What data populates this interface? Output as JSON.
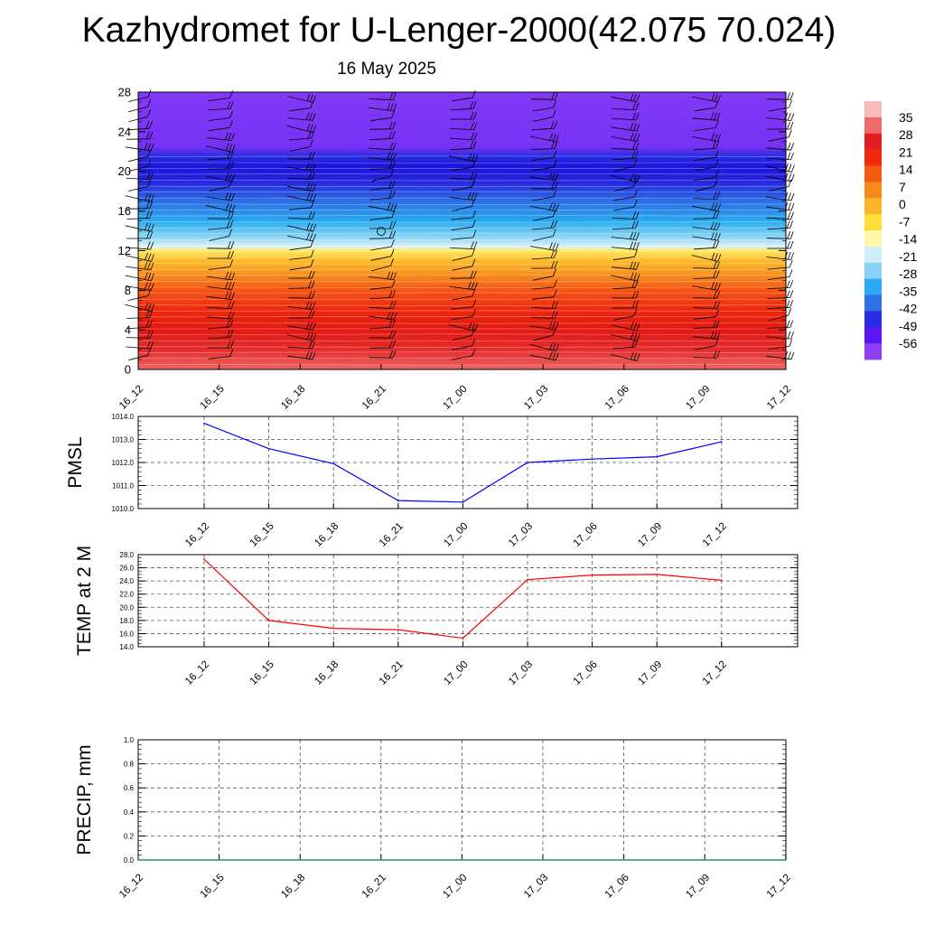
{
  "title": "Kazhydromet for U-Lenger-2000(42.075 70.024)",
  "subtitle": "16 May 2025",
  "chart_data": [
    {
      "type": "heatmap",
      "x_tick_labels": [
        "16_12",
        "16_15",
        "16_18",
        "16_21",
        "17_00",
        "17_03",
        "17_06",
        "17_09",
        "17_12"
      ],
      "y_ticks": [
        0,
        4,
        8,
        12,
        16,
        20,
        24,
        28
      ],
      "ylim": [
        0,
        28
      ],
      "color_levels": [
        {
          "y": 0,
          "value": 30
        },
        {
          "y": 2,
          "value": 26
        },
        {
          "y": 4,
          "value": 22
        },
        {
          "y": 6,
          "value": 17
        },
        {
          "y": 8,
          "value": 12
        },
        {
          "y": 9.5,
          "value": 7
        },
        {
          "y": 11,
          "value": 2
        },
        {
          "y": 12,
          "value": -3
        },
        {
          "y": 12.4,
          "value": -14
        },
        {
          "y": 13.5,
          "value": -24
        },
        {
          "y": 15,
          "value": -33
        },
        {
          "y": 17,
          "value": -43
        },
        {
          "y": 19,
          "value": -54
        },
        {
          "y": 20.5,
          "value": -58
        },
        {
          "y": 21.5,
          "value": -52
        },
        {
          "y": 22.5,
          "value": -62
        },
        {
          "y": 28,
          "value": -64
        }
      ],
      "colorbar": {
        "labels": [
          "35",
          "28",
          "21",
          "14",
          "7",
          "0",
          "-7",
          "-14",
          "-21",
          "-28",
          "-35",
          "-42",
          "-49",
          "-56"
        ],
        "colors": [
          "#f6bcbc",
          "#ee6a6a",
          "#e21e1e",
          "#f02a0c",
          "#f45a10",
          "#f7881a",
          "#fbb528",
          "#ffdf34",
          "#fff7a8",
          "#cfeef9",
          "#86d3f7",
          "#2aaaf2",
          "#2f6fe8",
          "#2b2ce6",
          "#5a16f6",
          "#8f3ef4"
        ]
      },
      "wind_barbs": "vertical profiles of wind barbs at each time step"
    },
    {
      "type": "line",
      "ylabel": "PMSL",
      "categories": [
        "16_12",
        "16_15",
        "16_18",
        "16_21",
        "17_00",
        "17_03",
        "17_06",
        "17_09",
        "17_12"
      ],
      "y_ticks": [
        "1010.0",
        "1011.0",
        "1012.0",
        "1013.0",
        "1014.0"
      ],
      "ylim": [
        1010,
        1014
      ],
      "series": [
        {
          "color": "#0000ff",
          "values": [
            1013.7,
            1012.6,
            1011.95,
            1010.35,
            1010.28,
            1012.0,
            1012.15,
            1012.25,
            1012.9
          ]
        }
      ]
    },
    {
      "type": "line",
      "ylabel": "TEMP at 2 M",
      "categories": [
        "16_12",
        "16_15",
        "16_18",
        "16_21",
        "17_00",
        "17_03",
        "17_06",
        "17_09",
        "17_12"
      ],
      "y_ticks": [
        "14.0",
        "16.0",
        "18.0",
        "20.0",
        "22.0",
        "24.0",
        "26.0",
        "28.0"
      ],
      "ylim": [
        14,
        28
      ],
      "series": [
        {
          "color": "#ff0000",
          "values": [
            27.3,
            18.0,
            16.8,
            16.6,
            15.3,
            24.2,
            24.9,
            25.0,
            24.1
          ]
        }
      ]
    },
    {
      "type": "line",
      "ylabel": "PRECIP, mm",
      "x_tick_labels": [
        "16_12",
        "16_15",
        "16_18",
        "16_21",
        "17_00",
        "17_03",
        "17_06",
        "17_09",
        "17_12"
      ],
      "y_ticks": [
        "0.0",
        "0.2",
        "0.4",
        "0.6",
        "0.8",
        "1.0"
      ],
      "ylim": [
        0,
        1
      ],
      "series": [
        {
          "color": "#2e8b57",
          "values": [
            0,
            0,
            0,
            0,
            0,
            0,
            0,
            0,
            0
          ]
        }
      ]
    }
  ]
}
